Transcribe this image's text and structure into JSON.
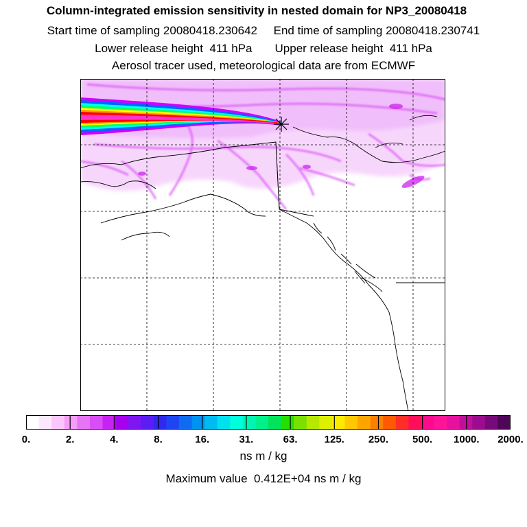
{
  "header": {
    "title": "Column-integrated emission sensitivity in nested domain for NP3_20080418",
    "sampling_line": "Start time of sampling 20080418.230642     End time of sampling 20080418.230741",
    "release_line": "Lower release height  411 hPa       Upper release height  411 hPa",
    "tracer_line": "Aerosol tracer used, meteorological data are from ECMWF"
  },
  "map": {
    "frame_color": "#000000",
    "grid_style": "dashed",
    "receptor_marker": "star-icon",
    "plume_colors": [
      "#cc00ff",
      "#ff33cc",
      "#ff0000",
      "#ff9900",
      "#ffff00",
      "#00ff66",
      "#00ffff",
      "#0066ff"
    ]
  },
  "colorbar": {
    "colors": [
      "#ffffff",
      "#fde7fe",
      "#fac6fc",
      "#f69df9",
      "#e675f6",
      "#d94df5",
      "#c822f3",
      "#a500f0",
      "#7f16f2",
      "#5a1ef2",
      "#3128f0",
      "#1e46f0",
      "#0e6cf0",
      "#0092f0",
      "#00bbf0",
      "#00e1f0",
      "#00ffdd",
      "#00f5b0",
      "#00f08a",
      "#00e35a",
      "#24e000",
      "#7be000",
      "#b7e800",
      "#dcf000",
      "#fcea00",
      "#ffc800",
      "#ffa500",
      "#ff8000",
      "#ff5a00",
      "#ff2e28",
      "#ff0f5a",
      "#ff0a8c",
      "#ff1497",
      "#e6119e",
      "#c00f9a",
      "#9c0c8e",
      "#760a78",
      "#4f0658"
    ],
    "tick_labels": [
      "0.",
      "2.",
      "4.",
      "8.",
      "16.",
      "31.",
      "63.",
      "125.",
      "250.",
      "500.",
      "1000.",
      "2000."
    ],
    "unit": "ns m / kg"
  },
  "footer": {
    "max_value": "Maximum value  0.412E+04 ns m / kg"
  }
}
